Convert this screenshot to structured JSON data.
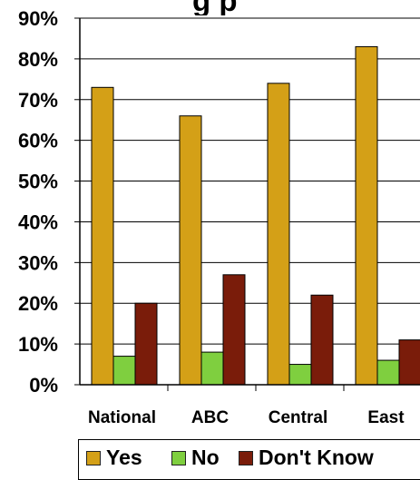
{
  "chart_data": {
    "type": "bar",
    "title_visible_fragment": "g   p",
    "categories": [
      "National",
      "ABC",
      "Central",
      "East"
    ],
    "series": [
      {
        "name": "Yes",
        "color": "#d4a017",
        "values": [
          73,
          66,
          74,
          83
        ]
      },
      {
        "name": "No",
        "color": "#7fcf3f",
        "values": [
          7,
          8,
          5,
          6
        ]
      },
      {
        "name": "Don't Know",
        "color": "#7a1c0a",
        "values": [
          20,
          27,
          22,
          11
        ]
      }
    ],
    "ylim": [
      0,
      90
    ],
    "yticks": [
      "0%",
      "10%",
      "20%",
      "30%",
      "40%",
      "50%",
      "60%",
      "70%",
      "80%",
      "90%"
    ],
    "grid": true,
    "legend_position": "bottom"
  }
}
